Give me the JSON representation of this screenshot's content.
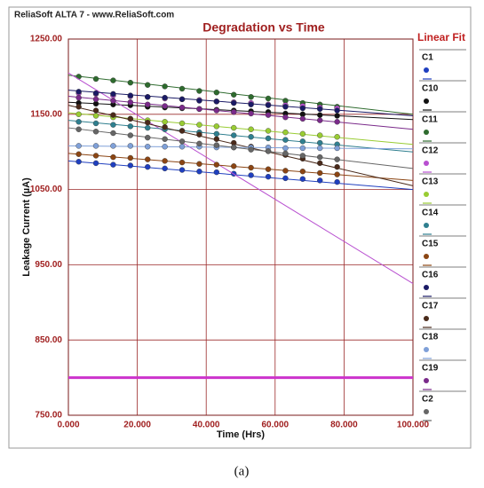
{
  "chart_data": {
    "type": "scatter",
    "header": "ReliaSoft ALTA 7 - www.ReliaSoft.com",
    "title": "Degradation vs Time",
    "x_label": "Time (Hrs)",
    "y_label": "Leakage Current (µA)",
    "legend_title": "Linear Fit",
    "caption": "(a)",
    "grid": true,
    "legend": "right",
    "xlim": [
      0,
      100
    ],
    "xticks": [
      {
        "value": 0,
        "label": "0.000"
      },
      {
        "value": 20,
        "label": "20.000"
      },
      {
        "value": 40,
        "label": "40.000"
      },
      {
        "value": 60,
        "label": "60.000"
      },
      {
        "value": 80,
        "label": "80.000"
      },
      {
        "value": 100,
        "label": "100.000"
      }
    ],
    "ylim": [
      750,
      1250
    ],
    "yticks": [
      {
        "value": 750,
        "label": "750.00"
      },
      {
        "value": 850,
        "label": "850.00"
      },
      {
        "value": 950,
        "label": "950.00"
      },
      {
        "value": 1050,
        "label": "1050.00"
      },
      {
        "value": 1150,
        "label": "1150.00"
      },
      {
        "value": 1250,
        "label": "1250.00"
      }
    ],
    "reference_line": {
      "value": 800,
      "color": "#cc33cc"
    },
    "x": [
      3,
      8,
      13,
      18,
      23,
      28,
      33,
      38,
      43,
      48,
      53,
      58,
      63,
      68,
      73,
      78
    ],
    "series": [
      {
        "name": "C1",
        "color": "#1f3fbf",
        "fit": [
          1088,
          1050
        ],
        "values": [
          1087,
          1085,
          1083,
          1082,
          1080,
          1078,
          1076,
          1074,
          1073,
          1071,
          1069,
          1067,
          1065,
          1064,
          1062,
          1060
        ]
      },
      {
        "name": "C10",
        "color": "#111111",
        "fit": [
          1166,
          1143
        ],
        "values": [
          1165,
          1164,
          1163,
          1162,
          1160,
          1159,
          1158,
          1157,
          1156,
          1155,
          1154,
          1153,
          1151,
          1150,
          1149,
          1148
        ]
      },
      {
        "name": "C11",
        "color": "#2e6b2e",
        "fit": [
          1202,
          1150
        ],
        "values": [
          1200,
          1197,
          1195,
          1192,
          1189,
          1187,
          1184,
          1181,
          1179,
          1176,
          1173,
          1171,
          1168,
          1165,
          1163,
          1160
        ]
      },
      {
        "name": "C12",
        "color": "#b84fd0",
        "fit": [
          1205,
          925
        ],
        "values": [
          1178,
          1177,
          1175,
          1174,
          1173,
          1171,
          1170,
          1169,
          1167,
          1166,
          1165,
          1163,
          1162,
          1161,
          1159,
          1158
        ]
      },
      {
        "name": "C13",
        "color": "#99cc33",
        "fit": [
          1152,
          1110
        ],
        "values": [
          1150,
          1148,
          1146,
          1144,
          1142,
          1140,
          1138,
          1136,
          1134,
          1132,
          1130,
          1128,
          1126,
          1124,
          1122,
          1120
        ]
      },
      {
        "name": "C14",
        "color": "#2f7f8f",
        "fit": [
          1142,
          1100
        ],
        "values": [
          1140,
          1138,
          1136,
          1134,
          1132,
          1130,
          1128,
          1126,
          1124,
          1122,
          1120,
          1118,
          1116,
          1114,
          1112,
          1110
        ]
      },
      {
        "name": "C15",
        "color": "#8b4513",
        "fit": [
          1098,
          1062
        ],
        "values": [
          1097,
          1095,
          1093,
          1092,
          1090,
          1088,
          1086,
          1084,
          1083,
          1081,
          1079,
          1077,
          1075,
          1074,
          1072,
          1070
        ]
      },
      {
        "name": "C16",
        "color": "#1a1a66",
        "fit": [
          1182,
          1148
        ],
        "values": [
          1180,
          1178,
          1177,
          1175,
          1173,
          1172,
          1170,
          1168,
          1167,
          1165,
          1163,
          1162,
          1160,
          1158,
          1157,
          1155
        ]
      },
      {
        "name": "C17",
        "color": "#4a2a1a",
        "fit": [
          1162,
          1055
        ],
        "values": [
          1160,
          1155,
          1149,
          1144,
          1139,
          1133,
          1128,
          1123,
          1117,
          1112,
          1107,
          1101,
          1096,
          1091,
          1085,
          1080
        ]
      },
      {
        "name": "C18",
        "color": "#7fa0d8",
        "fit": [
          1108,
          1104
        ],
        "values": [
          1108,
          1108,
          1108,
          1108,
          1107,
          1107,
          1107,
          1107,
          1106,
          1106,
          1106,
          1106,
          1105,
          1105,
          1105,
          1105
        ]
      },
      {
        "name": "C19",
        "color": "#7a2a8a",
        "fit": [
          1174,
          1130
        ],
        "values": [
          1172,
          1170,
          1168,
          1166,
          1163,
          1161,
          1159,
          1157,
          1155,
          1153,
          1151,
          1149,
          1146,
          1144,
          1142,
          1140
        ]
      },
      {
        "name": "C2",
        "color": "#666666",
        "fit": [
          1132,
          1078
        ],
        "values": [
          1130,
          1127,
          1125,
          1122,
          1119,
          1117,
          1114,
          1111,
          1109,
          1106,
          1103,
          1101,
          1098,
          1095,
          1093,
          1090
        ]
      }
    ]
  }
}
